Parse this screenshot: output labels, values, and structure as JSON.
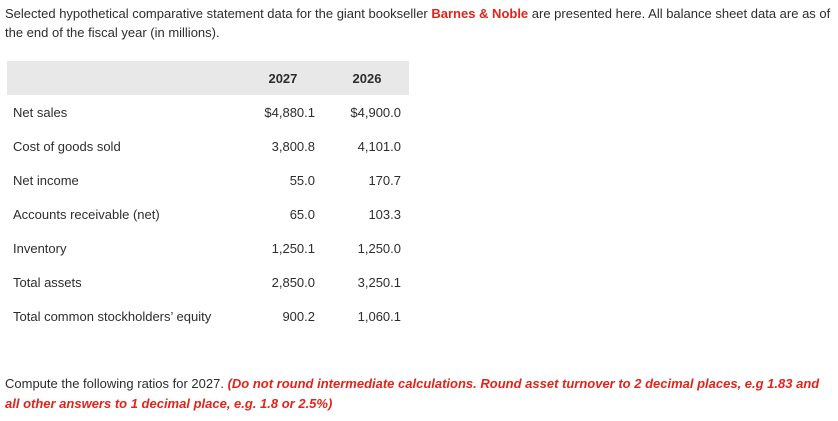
{
  "intro": {
    "before": "Selected hypothetical comparative statement data for the giant bookseller ",
    "company": "Barnes & Noble",
    "after": " are presented here. All balance sheet data are as of the end of the fiscal year (in millions)."
  },
  "table": {
    "headers": [
      "",
      "2027",
      "2026"
    ],
    "rows": [
      {
        "label": "Net sales",
        "y2027": "$4,880.1",
        "y2026": "$4,900.0"
      },
      {
        "label": "Cost of goods sold",
        "y2027": "3,800.8",
        "y2026": "4,101.0"
      },
      {
        "label": "Net income",
        "y2027": "55.0",
        "y2026": "170.7"
      },
      {
        "label": "Accounts receivable (net)",
        "y2027": "65.0",
        "y2026": "103.3"
      },
      {
        "label": "Inventory",
        "y2027": "1,250.1",
        "y2026": "1,250.0"
      },
      {
        "label": "Total assets",
        "y2027": "2,850.0",
        "y2026": "3,250.1"
      },
      {
        "label": "Total common stockholders’ equity",
        "y2027": "900.2",
        "y2026": "1,060.1"
      }
    ]
  },
  "instructions": {
    "text": "Compute the following ratios for 2027. ",
    "note": "(Do not round intermediate calculations. Round asset turnover to 2 decimal places, e.g 1.83 and all other answers to 1 decimal place, e.g. 1.8 or 2.5%)"
  }
}
